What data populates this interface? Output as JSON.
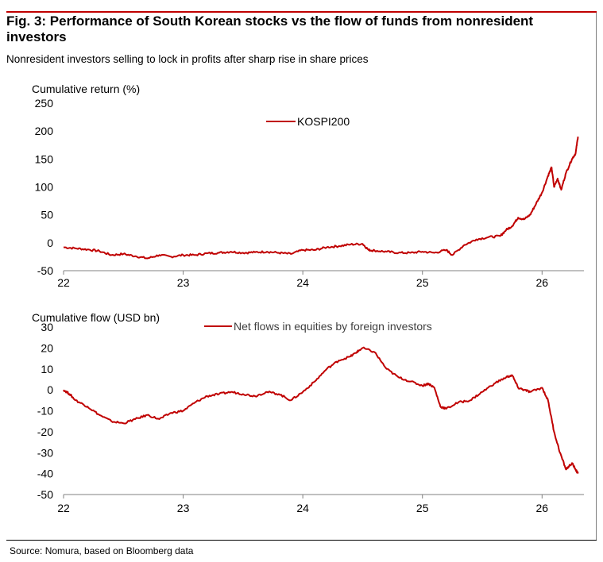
{
  "figure": {
    "title": "Fig. 3: Performance of South Korean stocks vs the flow of funds from nonresident investors",
    "subtitle": "Nonresident investors selling to lock in profits after sharp rise in share prices",
    "source": "Source: Nomura, based on Bloomberg data"
  },
  "colors": {
    "series": "#c00000",
    "rule": "#c00000",
    "axis": "#808080"
  },
  "chart_data": [
    {
      "type": "line",
      "title": "",
      "ylabel": "Cumulative return (%)",
      "xlabel": "",
      "xlim": [
        2022,
        2026.35
      ],
      "ylim": [
        -50,
        250
      ],
      "yticks": [
        -50,
        0,
        50,
        100,
        150,
        200,
        250
      ],
      "xticks": [
        22,
        23,
        24,
        25,
        26
      ],
      "grid": false,
      "legend": "top-center",
      "series": [
        {
          "name": "KOSPI200",
          "x": [
            2022.0,
            2022.1,
            2022.2,
            2022.3,
            2022.4,
            2022.5,
            2022.6,
            2022.7,
            2022.8,
            2022.9,
            2023.0,
            2023.1,
            2023.2,
            2023.3,
            2023.4,
            2023.5,
            2023.6,
            2023.7,
            2023.8,
            2023.9,
            2024.0,
            2024.1,
            2024.2,
            2024.3,
            2024.4,
            2024.5,
            2024.55,
            2024.6,
            2024.7,
            2024.8,
            2024.9,
            2025.0,
            2025.1,
            2025.2,
            2025.25,
            2025.35,
            2025.45,
            2025.55,
            2025.65,
            2025.7,
            2025.75,
            2025.8,
            2025.85,
            2025.9,
            2025.95,
            2026.0,
            2026.05,
            2026.08,
            2026.1,
            2026.13,
            2026.16,
            2026.2,
            2026.25,
            2026.28,
            2026.3
          ],
          "values": [
            -8,
            -10,
            -12,
            -15,
            -22,
            -20,
            -24,
            -28,
            -22,
            -25,
            -22,
            -22,
            -19,
            -18,
            -16,
            -18,
            -17,
            -16,
            -18,
            -20,
            -13,
            -13,
            -8,
            -6,
            -3,
            -2,
            -13,
            -14,
            -16,
            -18,
            -18,
            -16,
            -18,
            -13,
            -22,
            -4,
            6,
            10,
            12,
            23,
            30,
            45,
            42,
            50,
            70,
            90,
            120,
            135,
            100,
            115,
            95,
            125,
            150,
            160,
            190
          ]
        }
      ]
    },
    {
      "type": "line",
      "title": "",
      "ylabel": "Cumulative flow (USD bn)",
      "xlabel": "",
      "xlim": [
        2022,
        2026.35
      ],
      "ylim": [
        -50,
        30
      ],
      "yticks": [
        -50,
        -40,
        -30,
        -20,
        -10,
        0,
        10,
        20,
        30
      ],
      "xticks": [
        22,
        23,
        24,
        25,
        26
      ],
      "grid": false,
      "legend": "top-center",
      "series": [
        {
          "name": "Net flows in equities by foreign investors",
          "x": [
            2022.0,
            2022.05,
            2022.1,
            2022.2,
            2022.3,
            2022.4,
            2022.5,
            2022.6,
            2022.7,
            2022.8,
            2022.9,
            2023.0,
            2023.1,
            2023.2,
            2023.3,
            2023.4,
            2023.5,
            2023.6,
            2023.7,
            2023.8,
            2023.9,
            2024.0,
            2024.1,
            2024.2,
            2024.3,
            2024.4,
            2024.45,
            2024.5,
            2024.6,
            2024.7,
            2024.8,
            2024.9,
            2025.0,
            2025.05,
            2025.1,
            2025.15,
            2025.2,
            2025.3,
            2025.4,
            2025.5,
            2025.6,
            2025.7,
            2025.75,
            2025.8,
            2025.85,
            2025.9,
            2026.0,
            2026.05,
            2026.1,
            2026.15,
            2026.2,
            2026.25,
            2026.28,
            2026.3
          ],
          "values": [
            0,
            -2,
            -5,
            -8,
            -12,
            -15,
            -16,
            -14,
            -12,
            -14,
            -11,
            -10,
            -6,
            -3,
            -2,
            -1,
            -2,
            -3,
            -1,
            -2,
            -5,
            -1,
            4,
            10,
            14,
            16,
            18,
            20,
            18,
            10,
            6,
            4,
            2,
            3,
            1,
            -8,
            -9,
            -6,
            -5,
            -1,
            3,
            6,
            7,
            1,
            0,
            -1,
            1,
            -5,
            -20,
            -30,
            -38,
            -35,
            -38,
            -40
          ]
        }
      ]
    }
  ]
}
